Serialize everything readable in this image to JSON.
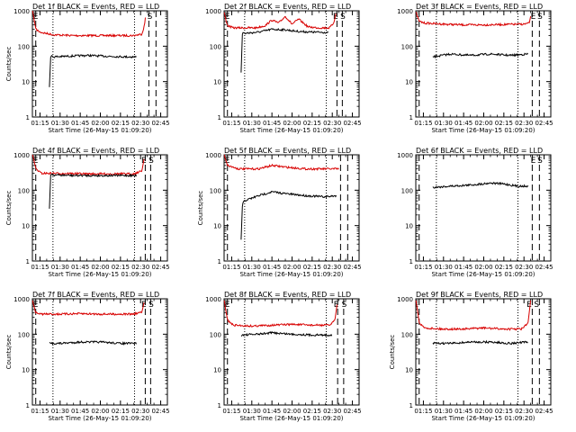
{
  "chart_data": [
    {
      "type": "line",
      "title": "Det 1f BLACK = Events, RED = LLD",
      "xlabel": "Start Time (26-May-15 01:09:20)",
      "ylabel": "Counts/sec",
      "y_scale": "log",
      "ylim": [
        1,
        1000
      ],
      "xlim": [
        "01:09:20",
        "02:50:00"
      ],
      "x_tick_labels": [
        "01:15",
        "01:30",
        "01:45",
        "02:00",
        "02:15",
        "02:30",
        "02:45"
      ],
      "y_tick_labels": [
        "1",
        "10",
        "100",
        "1000"
      ],
      "markers": [
        {
          "label": "E",
          "time": "01:09:50"
        },
        {
          "label": "S",
          "time": "02:35:00"
        }
      ],
      "vlines_dashed": [
        "01:11:50",
        "02:36:10",
        "02:41:30"
      ],
      "vlines_dotted": [
        "01:24:40",
        "02:25:30"
      ],
      "series": [
        {
          "name": "Events",
          "color": "#000000",
          "x": [
            "01:22:00",
            "01:23:00",
            "01:24:30",
            "01:35:00",
            "01:50:00",
            "02:05:00",
            "02:20:00",
            "02:27:00"
          ],
          "values": [
            7,
            55,
            50,
            52,
            55,
            52,
            50,
            50
          ]
        },
        {
          "name": "LLD",
          "color": "#d80000",
          "x": [
            "01:09:30",
            "01:10:30",
            "01:12:00",
            "01:15:00",
            "01:25:00",
            "01:40:00",
            "01:55:00",
            "02:10:00",
            "02:25:00",
            "02:31:00",
            "02:33:00",
            "02:34:00"
          ],
          "values": [
            1000,
            600,
            300,
            250,
            210,
            200,
            200,
            200,
            200,
            220,
            400,
            900
          ]
        }
      ]
    },
    {
      "type": "line",
      "title": "Det 2f BLACK = Events, RED = LLD",
      "xlabel": "Start Time (26-May-15 01:09:20)",
      "ylabel": "",
      "y_scale": "log",
      "ylim": [
        1,
        1000
      ],
      "xlim": [
        "01:09:20",
        "02:50:00"
      ],
      "x_tick_labels": [
        "01:15",
        "01:30",
        "01:45",
        "02:00",
        "02:15",
        "02:30",
        "02:45"
      ],
      "y_tick_labels": [
        "1",
        "10",
        "100",
        "1000"
      ],
      "markers": [
        {
          "label": "E",
          "time": "01:09:50"
        },
        {
          "label": "E",
          "time": "02:30:30"
        },
        {
          "label": "S",
          "time": "02:36:00"
        }
      ],
      "vlines_dashed": [
        "01:11:50",
        "02:33:30",
        "02:37:30"
      ],
      "vlines_dotted": [
        "01:24:40",
        "02:25:30"
      ],
      "series": [
        {
          "name": "Events",
          "color": "#000000",
          "x": [
            "01:22:00",
            "01:23:00",
            "01:24:30",
            "01:35:00",
            "01:45:00",
            "01:55:00",
            "02:05:00",
            "02:15:00",
            "02:27:00"
          ],
          "values": [
            18,
            250,
            230,
            250,
            300,
            290,
            260,
            250,
            245
          ]
        },
        {
          "name": "LLD",
          "color": "#d80000",
          "x": [
            "01:09:30",
            "01:10:30",
            "01:12:00",
            "01:16:00",
            "01:22:00",
            "01:33:00",
            "01:40:00",
            "01:45:00",
            "01:50:00",
            "01:55:00",
            "02:00:00",
            "02:05:00",
            "02:12:00",
            "02:20:00",
            "02:28:00",
            "02:31:00",
            "02:33:00"
          ],
          "values": [
            900,
            600,
            380,
            330,
            330,
            330,
            380,
            550,
            450,
            700,
            420,
            580,
            350,
            330,
            330,
            450,
            900
          ]
        }
      ]
    },
    {
      "type": "line",
      "title": "Det 3f BLACK = Events, RED = LLD",
      "xlabel": "Start Time (26-May-15 01:09:20)",
      "ylabel": "",
      "y_scale": "log",
      "ylim": [
        1,
        1000
      ],
      "xlim": [
        "01:09:20",
        "02:50:00"
      ],
      "x_tick_labels": [
        "01:15",
        "01:30",
        "01:45",
        "02:00",
        "02:15",
        "02:30",
        "02:45"
      ],
      "y_tick_labels": [
        "1",
        "10",
        "100",
        "1000"
      ],
      "markers": [
        {
          "label": "E",
          "time": "02:35:00"
        },
        {
          "label": "S",
          "time": "02:40:00"
        }
      ],
      "vlines_dashed": [
        "01:11:50",
        "02:36:10",
        "02:41:30"
      ],
      "vlines_dotted": [
        "01:24:40",
        "02:25:30"
      ],
      "series": [
        {
          "name": "Events",
          "color": "#000000",
          "x": [
            "01:22:00",
            "01:35:00",
            "01:50:00",
            "02:05:00",
            "02:20:00",
            "02:33:00"
          ],
          "values": [
            50,
            60,
            55,
            60,
            55,
            60
          ]
        },
        {
          "name": "LLD",
          "color": "#d80000",
          "x": [
            "01:09:30",
            "01:10:30",
            "01:12:00",
            "01:16:00",
            "01:30:00",
            "01:45:00",
            "02:00:00",
            "02:15:00",
            "02:30:00",
            "02:34:00",
            "02:35:00"
          ],
          "values": [
            900,
            700,
            500,
            450,
            420,
            400,
            400,
            410,
            420,
            450,
            700
          ]
        }
      ]
    },
    {
      "type": "line",
      "title": "Det 4f BLACK = Events, RED = LLD",
      "xlabel": "Start Time (26-May-15 01:09:20)",
      "ylabel": "Counts/sec",
      "y_scale": "log",
      "ylim": [
        1,
        1000
      ],
      "xlim": [
        "01:09:20",
        "02:50:00"
      ],
      "x_tick_labels": [
        "01:15",
        "01:30",
        "01:45",
        "02:00",
        "02:15",
        "02:30",
        "02:45"
      ],
      "y_tick_labels": [
        "1",
        "10",
        "100",
        "1000"
      ],
      "markers": [
        {
          "label": "E",
          "time": "01:09:50"
        },
        {
          "label": "E",
          "time": "02:30:30"
        },
        {
          "label": "S",
          "time": "02:36:00"
        }
      ],
      "vlines_dashed": [
        "01:11:50",
        "02:33:30",
        "02:37:30"
      ],
      "vlines_dotted": [
        "01:24:40",
        "02:25:30"
      ],
      "series": [
        {
          "name": "Events",
          "color": "#000000",
          "x": [
            "01:22:00",
            "01:23:00",
            "01:24:30",
            "01:40:00",
            "02:00:00",
            "02:15:00",
            "02:27:00"
          ],
          "values": [
            30,
            300,
            270,
            260,
            260,
            260,
            260
          ]
        },
        {
          "name": "LLD",
          "color": "#d80000",
          "x": [
            "01:09:30",
            "01:10:30",
            "01:12:00",
            "01:16:00",
            "01:30:00",
            "01:50:00",
            "02:10:00",
            "02:25:00",
            "02:31:00",
            "02:33:00"
          ],
          "values": [
            1000,
            700,
            400,
            300,
            300,
            290,
            290,
            290,
            350,
            900
          ]
        }
      ]
    },
    {
      "type": "line",
      "title": "Det 5f BLACK = Events, RED = LLD",
      "xlabel": "Start Time (26-May-15 01:09:20)",
      "ylabel": "Counts/sec",
      "y_scale": "log",
      "ylim": [
        1,
        1000
      ],
      "xlim": [
        "01:09:20",
        "02:50:00"
      ],
      "x_tick_labels": [
        "01:15",
        "01:30",
        "01:45",
        "02:00",
        "02:15",
        "02:30",
        "02:45"
      ],
      "y_tick_labels": [
        "1",
        "10",
        "100",
        "1000"
      ],
      "markers": [
        {
          "label": "E",
          "time": "01:09:50"
        }
      ],
      "vlines_dashed": [
        "01:11:50",
        "02:36:10",
        "02:41:30"
      ],
      "vlines_dotted": [
        "01:24:40",
        "02:25:30"
      ],
      "series": [
        {
          "name": "Events",
          "color": "#000000",
          "x": [
            "01:22:00",
            "01:23:00",
            "01:24:30",
            "01:35:00",
            "01:45:00",
            "01:55:00",
            "02:10:00",
            "02:25:00",
            "02:33:00"
          ],
          "values": [
            4,
            40,
            50,
            70,
            90,
            80,
            70,
            65,
            70
          ]
        },
        {
          "name": "LLD",
          "color": "#d80000",
          "x": [
            "01:09:30",
            "01:12:00",
            "01:20:00",
            "01:35:00",
            "01:45:00",
            "01:55:00",
            "02:10:00",
            "02:25:00",
            "02:35:00"
          ],
          "values": [
            1000,
            500,
            400,
            400,
            500,
            450,
            400,
            400,
            400
          ]
        }
      ]
    },
    {
      "type": "line",
      "title": "Det 6f BLACK = Events, RED = LLD",
      "xlabel": "Start Time (26-May-15 01:09:20)",
      "ylabel": "",
      "y_scale": "log",
      "ylim": [
        1,
        1000
      ],
      "xlim": [
        "01:09:20",
        "02:50:00"
      ],
      "x_tick_labels": [
        "01:15",
        "01:30",
        "01:45",
        "02:00",
        "02:15",
        "02:30",
        "02:45"
      ],
      "y_tick_labels": [
        "1",
        "10",
        "100",
        "1000"
      ],
      "markers": [
        {
          "label": "E",
          "time": "02:35:00"
        },
        {
          "label": "S",
          "time": "02:40:00"
        }
      ],
      "vlines_dashed": [
        "01:11:50",
        "02:36:10",
        "02:41:30"
      ],
      "vlines_dotted": [
        "01:24:40",
        "02:25:30"
      ],
      "series": [
        {
          "name": "Events",
          "color": "#000000",
          "x": [
            "01:22:00",
            "01:35:00",
            "01:50:00",
            "02:05:00",
            "02:15:00",
            "02:25:00",
            "02:33:00"
          ],
          "values": [
            120,
            130,
            140,
            160,
            150,
            130,
            130
          ]
        }
      ]
    },
    {
      "type": "line",
      "title": "Det 7f BLACK = Events, RED = LLD",
      "xlabel": "Start Time (26-May-15 01:09:20)",
      "ylabel": "Counts/sec",
      "y_scale": "log",
      "ylim": [
        1,
        1000
      ],
      "xlim": [
        "01:09:20",
        "02:50:00"
      ],
      "x_tick_labels": [
        "01:15",
        "01:30",
        "01:45",
        "02:00",
        "02:15",
        "02:30",
        "02:45"
      ],
      "y_tick_labels": [
        "1",
        "10",
        "100",
        "1000"
      ],
      "markers": [
        {
          "label": "E",
          "time": "01:09:50"
        },
        {
          "label": "E",
          "time": "02:30:30"
        },
        {
          "label": "S",
          "time": "02:36:00"
        }
      ],
      "vlines_dashed": [
        "01:11:50",
        "02:33:30",
        "02:37:30"
      ],
      "vlines_dotted": [
        "01:24:40",
        "02:25:30"
      ],
      "series": [
        {
          "name": "Events",
          "color": "#000000",
          "x": [
            "01:22:00",
            "01:30:00",
            "01:45:00",
            "02:00:00",
            "02:15:00",
            "02:27:00"
          ],
          "values": [
            55,
            55,
            60,
            60,
            55,
            55
          ]
        },
        {
          "name": "LLD",
          "color": "#d80000",
          "x": [
            "01:09:30",
            "01:10:30",
            "01:12:00",
            "01:16:00",
            "01:30:00",
            "01:45:00",
            "02:00:00",
            "02:15:00",
            "02:25:00",
            "02:31:00",
            "02:33:00"
          ],
          "values": [
            900,
            600,
            400,
            370,
            370,
            380,
            370,
            370,
            370,
            420,
            900
          ]
        }
      ]
    },
    {
      "type": "line",
      "title": "Det 8f BLACK = Events, RED = LLD",
      "xlabel": "Start Time (26-May-15 01:09:20)",
      "ylabel": "",
      "y_scale": "log",
      "ylim": [
        1,
        1000
      ],
      "xlim": [
        "01:09:20",
        "02:50:00"
      ],
      "x_tick_labels": [
        "01:15",
        "01:30",
        "01:45",
        "02:00",
        "02:15",
        "02:30",
        "02:45"
      ],
      "y_tick_labels": [
        "1",
        "10",
        "100",
        "1000"
      ],
      "markers": [
        {
          "label": "E",
          "time": "01:09:50"
        },
        {
          "label": "E",
          "time": "02:31:00"
        },
        {
          "label": "S",
          "time": "02:37:00"
        }
      ],
      "vlines_dashed": [
        "01:11:50",
        "02:34:00",
        "02:38:30"
      ],
      "vlines_dotted": [
        "01:24:40",
        "02:25:30"
      ],
      "series": [
        {
          "name": "Events",
          "color": "#000000",
          "x": [
            "01:22:00",
            "01:35:00",
            "01:45:00",
            "02:00:00",
            "02:15:00",
            "02:30:00"
          ],
          "values": [
            95,
            100,
            110,
            100,
            95,
            95
          ]
        },
        {
          "name": "LLD",
          "color": "#d80000",
          "x": [
            "01:09:30",
            "01:10:30",
            "01:12:00",
            "01:16:00",
            "01:30:00",
            "01:45:00",
            "02:00:00",
            "02:15:00",
            "02:28:00",
            "02:32:00",
            "02:34:00"
          ],
          "values": [
            900,
            500,
            250,
            180,
            170,
            180,
            190,
            180,
            180,
            250,
            900
          ]
        }
      ]
    },
    {
      "type": "line",
      "title": "Det 9f BLACK = Events, RED = LLD",
      "xlabel": "Start Time (26-May-15 01:09:20)",
      "ylabel": "Counts/sec",
      "y_scale": "log",
      "ylim": [
        1,
        1000
      ],
      "xlim": [
        "01:09:20",
        "02:50:00"
      ],
      "x_tick_labels": [
        "01:15",
        "01:30",
        "01:45",
        "02:00",
        "02:15",
        "02:30",
        "02:45"
      ],
      "y_tick_labels": [
        "1",
        "10",
        "100",
        "1000"
      ],
      "markers": [
        {
          "label": "E",
          "time": "02:32:00"
        },
        {
          "label": "S",
          "time": "02:37:30"
        }
      ],
      "vlines_dashed": [
        "01:11:50",
        "02:36:10",
        "02:41:30"
      ],
      "vlines_dotted": [
        "01:24:40",
        "02:25:30"
      ],
      "series": [
        {
          "name": "Events",
          "color": "#000000",
          "x": [
            "01:22:00",
            "01:35:00",
            "01:50:00",
            "02:05:00",
            "02:20:00",
            "02:33:00"
          ],
          "values": [
            55,
            55,
            60,
            60,
            55,
            60
          ]
        },
        {
          "name": "LLD",
          "color": "#d80000",
          "x": [
            "01:09:30",
            "01:10:30",
            "01:12:00",
            "01:16:00",
            "01:30:00",
            "01:45:00",
            "02:00:00",
            "02:15:00",
            "02:28:00",
            "02:33:00",
            "02:35:00"
          ],
          "values": [
            900,
            500,
            200,
            150,
            140,
            140,
            150,
            140,
            140,
            200,
            900
          ]
        }
      ]
    }
  ]
}
